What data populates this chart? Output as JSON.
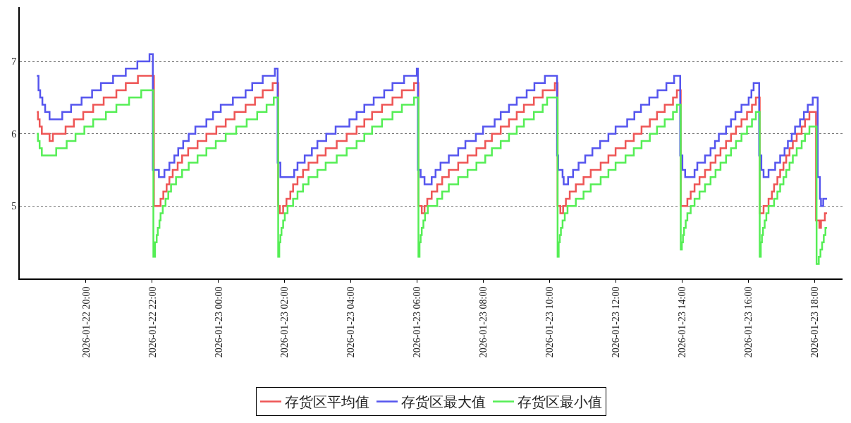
{
  "chart_data": {
    "type": "step",
    "legend": "bottom",
    "grid": "y",
    "xlim": [
      "2026-01-22T18:00",
      "2026-01-23T18:50"
    ],
    "xticks": [
      {
        "value": "2026-01-22T20:00",
        "label": "2026-01-22 20:00"
      },
      {
        "value": "2026-01-22T22:00",
        "label": "2026-01-22 22:00"
      },
      {
        "value": "2026-01-23T00:00",
        "label": "2026-01-23 00:00"
      },
      {
        "value": "2026-01-23T02:00",
        "label": "2026-01-23 02:00"
      },
      {
        "value": "2026-01-23T04:00",
        "label": "2026-01-23 04:00"
      },
      {
        "value": "2026-01-23T06:00",
        "label": "2026-01-23 06:00"
      },
      {
        "value": "2026-01-23T08:00",
        "label": "2026-01-23 08:00"
      },
      {
        "value": "2026-01-23T10:00",
        "label": "2026-01-23 10:00"
      },
      {
        "value": "2026-01-23T12:00",
        "label": "2026-01-23 12:00"
      },
      {
        "value": "2026-01-23T14:00",
        "label": "2026-01-23 14:00"
      },
      {
        "value": "2026-01-23T16:00",
        "label": "2026-01-23 16:00"
      },
      {
        "value": "2026-01-23T18:00",
        "label": "2026-01-23 18:00"
      }
    ],
    "ylim": [
      4,
      7.75
    ],
    "yticks": [
      5,
      6,
      7
    ],
    "series": [
      {
        "name": "存货区平均值",
        "color": "#ee5555",
        "x": [
          "2026-01-22T18:31",
          "2026-01-22T18:33",
          "2026-01-22T18:36",
          "2026-01-22T18:40",
          "2026-01-22T18:54",
          "2026-01-22T19:00",
          "2026-01-22T19:23",
          "2026-01-22T19:38",
          "2026-01-22T19:55",
          "2026-01-22T20:13",
          "2026-01-22T20:32",
          "2026-01-22T20:55",
          "2026-01-22T21:12",
          "2026-01-22T21:34",
          "2026-01-22T22:03",
          "2026-01-22T22:15",
          "2026-01-22T22:20",
          "2026-01-22T22:26",
          "2026-01-22T22:31",
          "2026-01-22T22:37",
          "2026-01-22T22:46",
          "2026-01-22T22:54",
          "2026-01-22T23:05",
          "2026-01-22T23:22",
          "2026-01-22T23:38",
          "2026-01-22T23:56",
          "2026-01-23T00:13",
          "2026-01-23T00:29",
          "2026-01-23T00:49",
          "2026-01-23T01:06",
          "2026-01-23T01:20",
          "2026-01-23T01:38",
          "2026-01-23T01:48",
          "2026-01-23T01:51",
          "2026-01-23T01:57",
          "2026-01-23T02:03",
          "2026-01-23T02:10",
          "2026-01-23T02:15",
          "2026-01-23T02:23",
          "2026-01-23T02:33",
          "2026-01-23T02:43",
          "2026-01-23T02:59",
          "2026-01-23T03:14",
          "2026-01-23T03:34",
          "2026-01-23T03:52",
          "2026-01-23T04:10",
          "2026-01-23T04:24",
          "2026-01-23T04:38",
          "2026-01-23T04:56",
          "2026-01-23T05:15",
          "2026-01-23T05:32",
          "2026-01-23T05:54",
          "2026-01-23T06:02",
          "2026-01-23T06:08",
          "2026-01-23T06:13",
          "2026-01-23T06:18",
          "2026-01-23T06:26",
          "2026-01-23T06:36",
          "2026-01-23T06:45",
          "2026-01-23T06:57",
          "2026-01-23T07:14",
          "2026-01-23T07:31",
          "2026-01-23T07:47",
          "2026-01-23T08:03",
          "2026-01-23T08:15",
          "2026-01-23T08:31",
          "2026-01-23T08:46",
          "2026-01-23T09:00",
          "2026-01-23T09:13",
          "2026-01-23T09:31",
          "2026-01-23T09:47",
          "2026-01-23T10:09",
          "2026-01-23T10:14",
          "2026-01-23T10:19",
          "2026-01-23T10:24",
          "2026-01-23T10:29",
          "2026-01-23T10:36",
          "2026-01-23T10:47",
          "2026-01-23T11:01",
          "2026-01-23T11:14",
          "2026-01-23T11:32",
          "2026-01-23T11:46",
          "2026-01-23T11:59",
          "2026-01-23T12:17",
          "2026-01-23T12:32",
          "2026-01-23T12:46",
          "2026-01-23T13:01",
          "2026-01-23T13:14",
          "2026-01-23T13:28",
          "2026-01-23T13:43",
          "2026-01-23T13:50",
          "2026-01-23T13:57",
          "2026-01-23T14:09",
          "2026-01-23T14:15",
          "2026-01-23T14:22",
          "2026-01-23T14:31",
          "2026-01-23T14:41",
          "2026-01-23T14:51",
          "2026-01-23T15:00",
          "2026-01-23T15:09",
          "2026-01-23T15:19",
          "2026-01-23T15:28",
          "2026-01-23T15:37",
          "2026-01-23T15:47",
          "2026-01-23T15:57",
          "2026-01-23T16:06",
          "2026-01-23T16:13",
          "2026-01-23T16:20",
          "2026-01-23T16:27",
          "2026-01-23T16:36",
          "2026-01-23T16:42",
          "2026-01-23T16:46",
          "2026-01-23T16:52",
          "2026-01-23T16:57",
          "2026-01-23T17:03",
          "2026-01-23T17:08",
          "2026-01-23T17:14",
          "2026-01-23T17:20",
          "2026-01-23T17:27",
          "2026-01-23T17:36",
          "2026-01-23T17:42",
          "2026-01-23T17:50",
          "2026-01-23T18:02",
          "2026-01-23T18:08",
          "2026-01-23T18:11",
          "2026-01-23T18:18",
          "2026-01-23T18:22"
        ],
        "values": [
          6.3,
          6.2,
          6.1,
          6.0,
          5.9,
          6.0,
          6.1,
          6.2,
          6.3,
          6.4,
          6.5,
          6.6,
          6.7,
          6.8,
          5.0,
          5.1,
          5.2,
          5.3,
          5.4,
          5.5,
          5.6,
          5.7,
          5.8,
          5.9,
          6.0,
          6.1,
          6.2,
          6.3,
          6.4,
          6.5,
          6.6,
          6.7,
          5.0,
          4.9,
          5.0,
          5.1,
          5.2,
          5.3,
          5.4,
          5.5,
          5.6,
          5.7,
          5.8,
          5.9,
          6.0,
          6.1,
          6.2,
          6.3,
          6.4,
          6.5,
          6.6,
          6.7,
          5.0,
          4.9,
          5.0,
          5.1,
          5.2,
          5.3,
          5.4,
          5.5,
          5.6,
          5.7,
          5.8,
          5.9,
          6.0,
          6.1,
          6.2,
          6.3,
          6.4,
          6.5,
          6.6,
          6.7,
          5.0,
          4.9,
          5.0,
          5.1,
          5.2,
          5.3,
          5.4,
          5.5,
          5.6,
          5.7,
          5.8,
          5.9,
          6.0,
          6.1,
          6.2,
          6.3,
          6.4,
          6.5,
          6.6,
          5.0,
          5.1,
          5.2,
          5.3,
          5.4,
          5.5,
          5.6,
          5.7,
          5.8,
          5.9,
          6.0,
          6.1,
          6.2,
          6.3,
          6.4,
          6.5,
          4.9,
          5.0,
          5.1,
          5.2,
          5.3,
          5.4,
          5.5,
          5.6,
          5.7,
          5.8,
          5.9,
          6.0,
          6.1,
          6.2,
          6.3,
          4.8,
          4.7,
          4.8,
          4.9,
          4.9
        ]
      },
      {
        "name": "存货区最大值",
        "color": "#5555ee",
        "x": [
          "2026-01-22T18:31",
          "2026-01-22T18:34",
          "2026-01-22T18:37",
          "2026-01-22T18:41",
          "2026-01-22T18:46",
          "2026-01-22T18:54",
          "2026-01-22T19:17",
          "2026-01-22T19:33",
          "2026-01-22T19:52",
          "2026-01-22T20:11",
          "2026-01-22T20:27",
          "2026-01-22T20:49",
          "2026-01-22T21:12",
          "2026-01-22T21:33",
          "2026-01-22T21:55",
          "2026-01-22T22:01",
          "2026-01-22T22:12",
          "2026-01-22T22:22",
          "2026-01-22T22:31",
          "2026-01-22T22:40",
          "2026-01-22T22:47",
          "2026-01-22T22:56",
          "2026-01-22T23:06",
          "2026-01-22T23:18",
          "2026-01-22T23:38",
          "2026-01-22T23:50",
          "2026-01-23T00:04",
          "2026-01-23T00:26",
          "2026-01-23T00:49",
          "2026-01-23T01:01",
          "2026-01-23T01:20",
          "2026-01-23T01:42",
          "2026-01-23T01:47",
          "2026-01-23T01:52",
          "2026-01-23T02:17",
          "2026-01-23T02:23",
          "2026-01-23T02:36",
          "2026-01-23T02:49",
          "2026-01-23T02:59",
          "2026-01-23T03:15",
          "2026-01-23T03:32",
          "2026-01-23T03:57",
          "2026-01-23T04:10",
          "2026-01-23T04:24",
          "2026-01-23T04:41",
          "2026-01-23T05:00",
          "2026-01-23T05:15",
          "2026-01-23T05:36",
          "2026-01-23T05:59",
          "2026-01-23T06:01",
          "2026-01-23T06:06",
          "2026-01-23T06:13",
          "2026-01-23T06:26",
          "2026-01-23T06:33",
          "2026-01-23T06:42",
          "2026-01-23T06:57",
          "2026-01-23T07:14",
          "2026-01-23T07:27",
          "2026-01-23T07:46",
          "2026-01-23T07:59",
          "2026-01-23T08:20",
          "2026-01-23T08:31",
          "2026-01-23T08:46",
          "2026-01-23T09:00",
          "2026-01-23T09:18",
          "2026-01-23T09:32",
          "2026-01-23T09:51",
          "2026-01-23T10:13",
          "2026-01-23T10:15",
          "2026-01-23T10:23",
          "2026-01-23T10:25",
          "2026-01-23T10:33",
          "2026-01-23T10:42",
          "2026-01-23T10:52",
          "2026-01-23T11:04",
          "2026-01-23T11:17",
          "2026-01-23T11:31",
          "2026-01-23T11:46",
          "2026-01-23T11:59",
          "2026-01-23T12:20",
          "2026-01-23T12:33",
          "2026-01-23T12:45",
          "2026-01-23T13:00",
          "2026-01-23T13:15",
          "2026-01-23T13:31",
          "2026-01-23T13:45",
          "2026-01-23T13:56",
          "2026-01-23T14:00",
          "2026-01-23T14:05",
          "2026-01-23T14:22",
          "2026-01-23T14:27",
          "2026-01-23T14:41",
          "2026-01-23T14:51",
          "2026-01-23T14:59",
          "2026-01-23T15:06",
          "2026-01-23T15:19",
          "2026-01-23T15:28",
          "2026-01-23T15:36",
          "2026-01-23T15:47",
          "2026-01-23T16:00",
          "2026-01-23T16:05",
          "2026-01-23T16:09",
          "2026-01-23T16:19",
          "2026-01-23T16:23",
          "2026-01-23T16:27",
          "2026-01-23T16:36",
          "2026-01-23T16:48",
          "2026-01-23T16:57",
          "2026-01-23T17:05",
          "2026-01-23T17:11",
          "2026-01-23T17:18",
          "2026-01-23T17:24",
          "2026-01-23T17:33",
          "2026-01-23T17:40",
          "2026-01-23T17:47",
          "2026-01-23T17:56",
          "2026-01-23T18:05",
          "2026-01-23T18:09",
          "2026-01-23T18:11",
          "2026-01-23T18:15",
          "2026-01-23T18:22"
        ],
        "values": [
          6.8,
          6.6,
          6.5,
          6.4,
          6.3,
          6.2,
          6.3,
          6.4,
          6.5,
          6.6,
          6.7,
          6.8,
          6.9,
          7.0,
          7.1,
          5.5,
          5.4,
          5.5,
          5.6,
          5.7,
          5.8,
          5.9,
          6.0,
          6.1,
          6.2,
          6.3,
          6.4,
          6.5,
          6.6,
          6.7,
          6.8,
          6.9,
          5.6,
          5.4,
          5.5,
          5.6,
          5.7,
          5.8,
          5.9,
          6.0,
          6.1,
          6.2,
          6.3,
          6.4,
          6.5,
          6.6,
          6.7,
          6.8,
          6.9,
          5.5,
          5.4,
          5.3,
          5.4,
          5.5,
          5.6,
          5.7,
          5.8,
          5.9,
          6.0,
          6.1,
          6.2,
          6.3,
          6.4,
          6.5,
          6.6,
          6.7,
          6.8,
          5.7,
          5.5,
          5.4,
          5.3,
          5.4,
          5.5,
          5.6,
          5.7,
          5.8,
          5.9,
          6.0,
          6.1,
          6.2,
          6.3,
          6.4,
          6.5,
          6.6,
          6.7,
          6.8,
          5.7,
          5.5,
          5.4,
          5.5,
          5.6,
          5.7,
          5.8,
          5.9,
          6.0,
          6.1,
          6.2,
          6.3,
          6.4,
          6.5,
          6.6,
          6.7,
          5.7,
          5.5,
          5.4,
          5.5,
          5.6,
          5.7,
          5.8,
          5.9,
          6.0,
          6.1,
          6.2,
          6.3,
          6.4,
          6.5,
          5.4,
          5.1,
          5.0,
          5.1,
          5.1
        ]
      },
      {
        "name": "存货区最小值",
        "color": "#55ee55",
        "x": [
          "2026-01-22T18:31",
          "2026-01-22T18:33",
          "2026-01-22T18:36",
          "2026-01-22T18:40",
          "2026-01-22T19:06",
          "2026-01-22T19:25",
          "2026-01-22T19:41",
          "2026-01-22T19:57",
          "2026-01-22T20:13",
          "2026-01-22T20:36",
          "2026-01-22T20:55",
          "2026-01-22T21:18",
          "2026-01-22T21:40",
          "2026-01-22T22:02",
          "2026-01-22T22:05",
          "2026-01-22T22:08",
          "2026-01-22T22:10",
          "2026-01-22T22:13",
          "2026-01-22T22:15",
          "2026-01-22T22:19",
          "2026-01-22T22:24",
          "2026-01-22T22:29",
          "2026-01-22T22:34",
          "2026-01-22T22:43",
          "2026-01-22T22:54",
          "2026-01-22T23:06",
          "2026-01-22T23:22",
          "2026-01-22T23:38",
          "2026-01-22T23:55",
          "2026-01-23T00:13",
          "2026-01-23T00:32",
          "2026-01-23T00:51",
          "2026-01-23T01:10",
          "2026-01-23T01:27",
          "2026-01-23T01:40",
          "2026-01-23T01:48",
          "2026-01-23T01:50",
          "2026-01-23T01:52",
          "2026-01-23T01:54",
          "2026-01-23T01:57",
          "2026-01-23T02:00",
          "2026-01-23T02:05",
          "2026-01-23T02:15",
          "2026-01-23T02:23",
          "2026-01-23T02:33",
          "2026-01-23T02:43",
          "2026-01-23T02:59",
          "2026-01-23T03:14",
          "2026-01-23T03:34",
          "2026-01-23T03:52",
          "2026-01-23T04:10",
          "2026-01-23T04:24",
          "2026-01-23T04:38",
          "2026-01-23T04:56",
          "2026-01-23T05:15",
          "2026-01-23T05:32",
          "2026-01-23T05:54",
          "2026-01-23T06:02",
          "2026-01-23T06:04",
          "2026-01-23T06:06",
          "2026-01-23T06:08",
          "2026-01-23T06:11",
          "2026-01-23T06:14",
          "2026-01-23T06:19",
          "2026-01-23T06:36",
          "2026-01-23T06:45",
          "2026-01-23T06:57",
          "2026-01-23T07:14",
          "2026-01-23T07:31",
          "2026-01-23T07:47",
          "2026-01-23T08:03",
          "2026-01-23T08:15",
          "2026-01-23T08:31",
          "2026-01-23T08:46",
          "2026-01-23T09:00",
          "2026-01-23T09:13",
          "2026-01-23T09:31",
          "2026-01-23T09:47",
          "2026-01-23T09:55",
          "2026-01-23T10:14",
          "2026-01-23T10:16",
          "2026-01-23T10:18",
          "2026-01-23T10:20",
          "2026-01-23T10:23",
          "2026-01-23T10:27",
          "2026-01-23T10:32",
          "2026-01-23T10:47",
          "2026-01-23T11:01",
          "2026-01-23T11:14",
          "2026-01-23T11:32",
          "2026-01-23T11:46",
          "2026-01-23T11:59",
          "2026-01-23T12:17",
          "2026-01-23T12:32",
          "2026-01-23T12:46",
          "2026-01-23T13:01",
          "2026-01-23T13:14",
          "2026-01-23T13:28",
          "2026-01-23T13:43",
          "2026-01-23T13:50",
          "2026-01-23T13:57",
          "2026-01-23T13:59",
          "2026-01-23T14:01",
          "2026-01-23T14:03",
          "2026-01-23T14:06",
          "2026-01-23T14:09",
          "2026-01-23T14:15",
          "2026-01-23T14:22",
          "2026-01-23T14:31",
          "2026-01-23T14:41",
          "2026-01-23T14:51",
          "2026-01-23T15:00",
          "2026-01-23T15:09",
          "2026-01-23T15:19",
          "2026-01-23T15:28",
          "2026-01-23T15:37",
          "2026-01-23T15:47",
          "2026-01-23T15:57",
          "2026-01-23T16:06",
          "2026-01-23T16:13",
          "2026-01-23T16:20",
          "2026-01-23T16:22",
          "2026-01-23T16:24",
          "2026-01-23T16:26",
          "2026-01-23T16:29",
          "2026-01-23T16:32",
          "2026-01-23T16:36",
          "2026-01-23T16:46",
          "2026-01-23T16:52",
          "2026-01-23T16:57",
          "2026-01-23T17:03",
          "2026-01-23T17:08",
          "2026-01-23T17:14",
          "2026-01-23T17:20",
          "2026-01-23T17:27",
          "2026-01-23T17:36",
          "2026-01-23T17:42",
          "2026-01-23T17:50",
          "2026-01-23T18:03",
          "2026-01-23T18:07",
          "2026-01-23T18:10",
          "2026-01-23T18:13",
          "2026-01-23T18:16",
          "2026-01-23T18:19",
          "2026-01-23T18:22"
        ],
        "values": [
          6.0,
          5.9,
          5.8,
          5.7,
          5.8,
          5.9,
          6.0,
          6.1,
          6.2,
          6.3,
          6.4,
          6.5,
          6.6,
          4.3,
          4.5,
          4.6,
          4.7,
          4.8,
          4.9,
          5.0,
          5.1,
          5.2,
          5.3,
          5.4,
          5.5,
          5.6,
          5.7,
          5.8,
          5.9,
          6.0,
          6.1,
          6.2,
          6.3,
          6.4,
          6.5,
          4.3,
          4.5,
          4.6,
          4.7,
          4.8,
          4.9,
          5.0,
          5.1,
          5.2,
          5.3,
          5.4,
          5.5,
          5.6,
          5.7,
          5.8,
          5.9,
          6.0,
          6.1,
          6.2,
          6.3,
          6.4,
          6.5,
          4.3,
          4.5,
          4.6,
          4.7,
          4.8,
          4.9,
          5.0,
          5.1,
          5.2,
          5.3,
          5.4,
          5.5,
          5.6,
          5.7,
          5.8,
          5.9,
          6.0,
          6.1,
          6.2,
          6.3,
          6.4,
          6.5,
          4.3,
          4.5,
          4.6,
          4.7,
          4.8,
          4.9,
          5.0,
          5.1,
          5.2,
          5.3,
          5.4,
          5.5,
          5.6,
          5.7,
          5.8,
          5.9,
          6.0,
          6.1,
          6.2,
          6.3,
          6.4,
          4.4,
          4.5,
          4.6,
          4.7,
          4.8,
          4.9,
          5.0,
          5.1,
          5.2,
          5.3,
          5.4,
          5.5,
          5.6,
          5.7,
          5.8,
          5.9,
          6.0,
          6.1,
          6.2,
          6.3,
          4.3,
          4.5,
          4.6,
          4.7,
          4.8,
          4.9,
          5.0,
          5.1,
          5.2,
          5.3,
          5.4,
          5.5,
          5.6,
          5.7,
          5.8,
          5.9,
          6.0,
          6.1,
          4.2,
          4.3,
          4.4,
          4.5,
          4.6,
          4.7,
          4.7
        ]
      }
    ]
  }
}
